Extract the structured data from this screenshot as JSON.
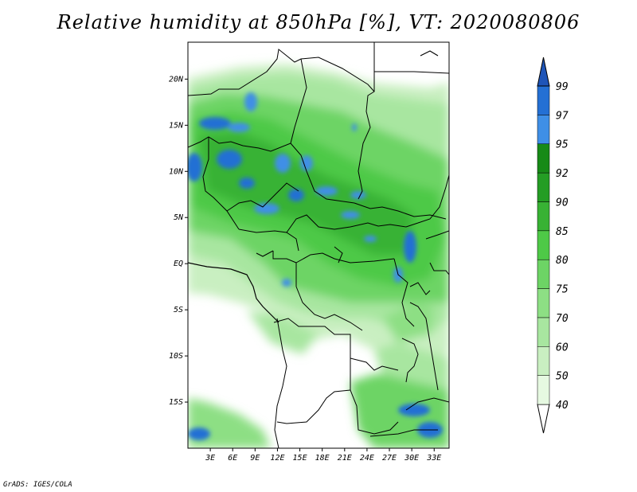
{
  "title": "Relative humidity at 850hPa [%], VT: 2020080806",
  "map": {
    "lon_range": [
      0,
      35
    ],
    "lat_range": [
      -20,
      24
    ],
    "lon_ticks": [
      {
        "lon": 3,
        "label": "3E"
      },
      {
        "lon": 6,
        "label": "6E"
      },
      {
        "lon": 9,
        "label": "9E"
      },
      {
        "lon": 12,
        "label": "12E"
      },
      {
        "lon": 15,
        "label": "15E"
      },
      {
        "lon": 18,
        "label": "18E"
      },
      {
        "lon": 21,
        "label": "21E"
      },
      {
        "lon": 24,
        "label": "24E"
      },
      {
        "lon": 27,
        "label": "27E"
      },
      {
        "lon": 30,
        "label": "30E"
      },
      {
        "lon": 33,
        "label": "33E"
      }
    ],
    "lat_ticks": [
      {
        "lat": 20,
        "label": "20N"
      },
      {
        "lat": 15,
        "label": "15N"
      },
      {
        "lat": 10,
        "label": "10N"
      },
      {
        "lat": 5,
        "label": "5N"
      },
      {
        "lat": 0,
        "label": "EQ"
      },
      {
        "lat": -5,
        "label": "5S"
      },
      {
        "lat": -10,
        "label": "10S"
      },
      {
        "lat": -15,
        "label": "15S"
      }
    ]
  },
  "colorbar": {
    "levels": [
      {
        "label": "40",
        "color": "#e6f9e1"
      },
      {
        "label": "50",
        "color": "#c9efc1"
      },
      {
        "label": "60",
        "color": "#a8e6a0"
      },
      {
        "label": "70",
        "color": "#8ddf84"
      },
      {
        "label": "75",
        "color": "#6dd465"
      },
      {
        "label": "80",
        "color": "#4ec947"
      },
      {
        "label": "85",
        "color": "#38b234"
      },
      {
        "label": "90",
        "color": "#249d24"
      },
      {
        "label": "92",
        "color": "#178a17"
      },
      {
        "label": "95",
        "color": "#3f8fe6"
      },
      {
        "label": "97",
        "color": "#2470d4"
      },
      {
        "label": "99",
        "color": "#1f55b8"
      }
    ],
    "top_color": "#1f55b8"
  },
  "credit": "GrADS: IGES/COLA"
}
